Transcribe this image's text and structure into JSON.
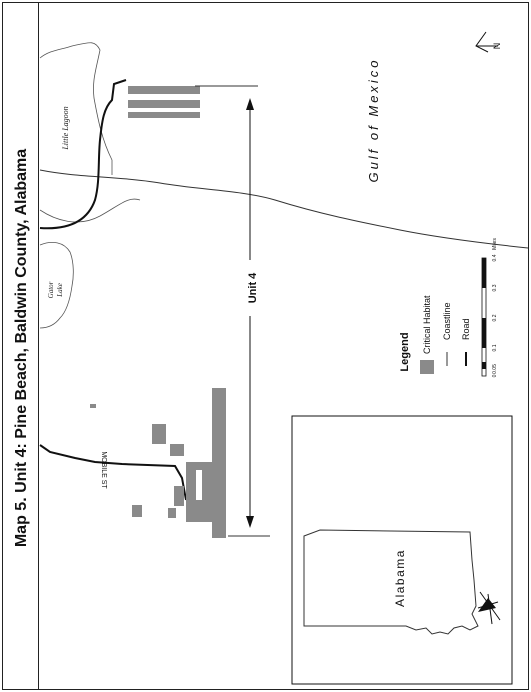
{
  "map": {
    "title": "Map 5.   Unit 4: Pine Beach, Baldwin County, Alabama",
    "unit_label": "Unit 4",
    "water_label": "Gulf of Mexico",
    "place_labels": {
      "little_lagoon": "Little Lagoon",
      "gator_lake": "Gator\nLake",
      "gator_lake_line1": "Gator",
      "gator_lake_line2": "Lake",
      "mobile_st": "MOBILE ST"
    },
    "north_arrow_letter": "N",
    "inset_state": "Alabama",
    "legend": {
      "title": "Legend",
      "items": [
        "Critical Habitat",
        "Coastline",
        "Road"
      ]
    },
    "scale": {
      "ticks": [
        "0",
        "0.05",
        "0.1",
        "0.2",
        "0.3",
        "0.4"
      ],
      "unit": "Miles"
    },
    "colors": {
      "habitat": "#8a8a8a",
      "line": "#333333",
      "road": "#111111",
      "background": "#ffffff"
    }
  }
}
